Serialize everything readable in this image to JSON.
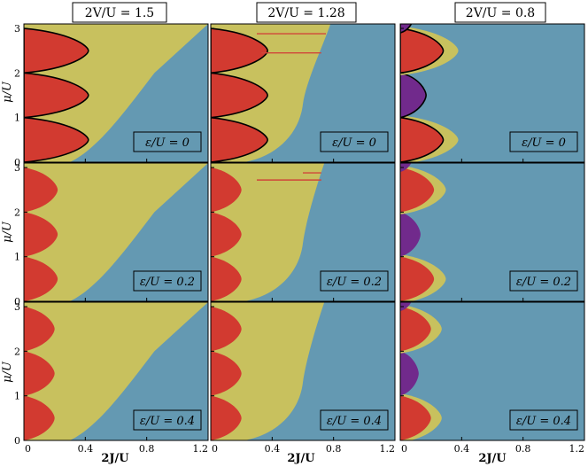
{
  "figure": {
    "column_titles": [
      "2V/U = 1.5",
      "2V/U = 1.28",
      "2V/U = 0.8"
    ],
    "row_labels": [
      "ε/U = 0",
      "ε/U = 0.2",
      "ε/U = 0.4"
    ],
    "xlabel": "2J/U",
    "ylabel": "μ/U",
    "x_ticks": [
      "0",
      "0.4",
      "0.8",
      "1.2"
    ],
    "y_ticks": [
      "0",
      "1",
      "2",
      "3"
    ],
    "colors": {
      "blue": "#6499B2",
      "yellow": "#C8C15E",
      "red": "#D23A30",
      "purple": "#712A8C",
      "boundary": "#000000",
      "line": "#D0463A"
    }
  },
  "chart_data": {
    "type": "heatmap",
    "xlim": [
      0,
      1.2
    ],
    "ylim": [
      0,
      3.1
    ],
    "panels": [
      {
        "row": 0,
        "col": 0,
        "column_title": "2V/U = 1.5",
        "label": "ε/U = 0",
        "red_lobe_width": 0.42,
        "yellow_top_x": 1.2,
        "boundary": true,
        "purple": false
      },
      {
        "row": 0,
        "col": 1,
        "column_title": "2V/U = 1.28",
        "label": "ε/U = 0",
        "red_lobe_width": 0.37,
        "yellow_top_x": 0.78,
        "boundary": true,
        "purple": false,
        "lines": [
          {
            "x": [
              0.3,
              0.75
            ],
            "y": 2.88
          },
          {
            "x": [
              0.33,
              0.72
            ],
            "y": 2.45
          }
        ]
      },
      {
        "row": 0,
        "col": 2,
        "column_title": "2V/U = 0.8",
        "label": "ε/U = 0",
        "red_lobe_width": 0.28,
        "yellow_top_x": 0.0,
        "boundary": true,
        "purple": true
      },
      {
        "row": 1,
        "col": 0,
        "column_title": "2V/U = 1.5",
        "label": "ε/U = 0.2",
        "red_lobe_width": 0.22,
        "yellow_top_x": 1.2,
        "boundary": false,
        "purple": false
      },
      {
        "row": 1,
        "col": 1,
        "column_title": "2V/U = 1.28",
        "label": "ε/U = 0.2",
        "red_lobe_width": 0.2,
        "yellow_top_x": 0.74,
        "boundary": false,
        "purple": false,
        "lines": [
          {
            "x": [
              0.3,
              0.72
            ],
            "y": 2.72
          },
          {
            "x": [
              0.6,
              0.72
            ],
            "y": 2.88
          }
        ]
      },
      {
        "row": 1,
        "col": 2,
        "column_title": "2V/U = 0.8",
        "label": "ε/U = 0.2",
        "red_lobe_width": 0.22,
        "yellow_top_x": 0.0,
        "boundary": false,
        "purple": true
      },
      {
        "row": 2,
        "col": 0,
        "column_title": "2V/U = 1.5",
        "label": "ε/U = 0.4",
        "red_lobe_width": 0.2,
        "yellow_top_x": 1.2,
        "boundary": false,
        "purple": false
      },
      {
        "row": 2,
        "col": 1,
        "column_title": "2V/U = 1.28",
        "label": "ε/U = 0.4",
        "red_lobe_width": 0.2,
        "yellow_top_x": 0.74,
        "boundary": false,
        "purple": false
      },
      {
        "row": 2,
        "col": 2,
        "column_title": "2V/U = 0.8",
        "label": "ε/U = 0.4",
        "red_lobe_width": 0.2,
        "yellow_top_x": 0.0,
        "boundary": false,
        "purple": true
      }
    ]
  }
}
